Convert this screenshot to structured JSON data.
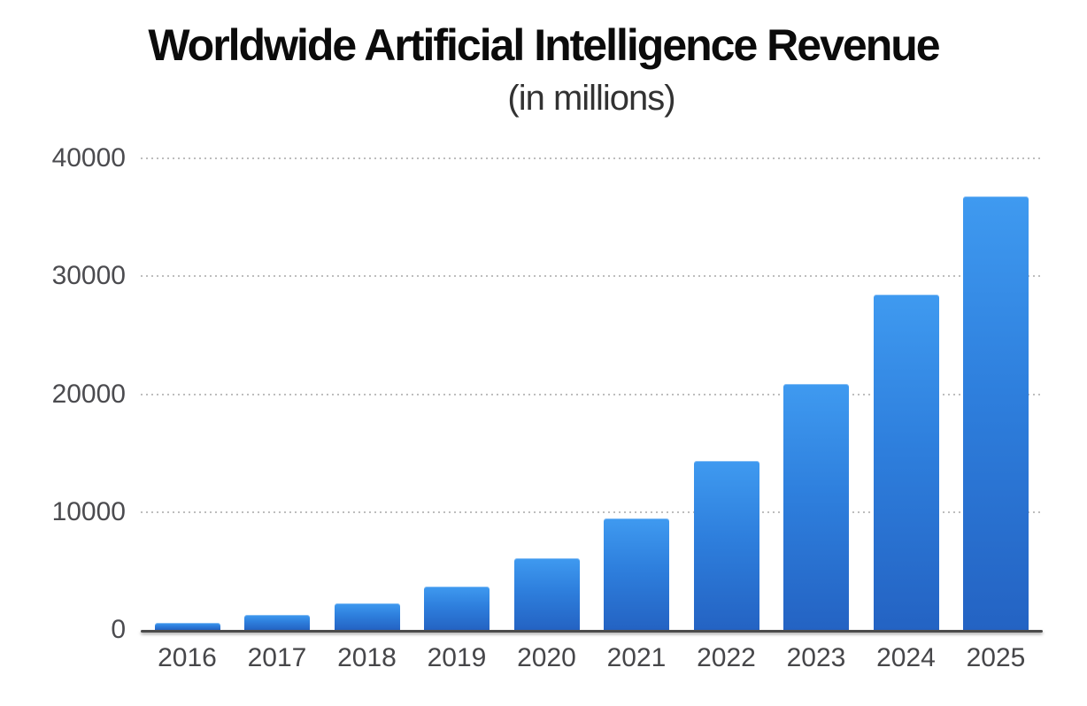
{
  "chart": {
    "title": "Worldwide Artificial Intelligence Revenue",
    "subtitle": "(in millions)"
  },
  "chart_data": {
    "type": "bar",
    "title": "Worldwide Artificial Intelligence Revenue",
    "subtitle": "(in millions)",
    "categories": [
      "2016",
      "2017",
      "2018",
      "2019",
      "2020",
      "2021",
      "2022",
      "2023",
      "2024",
      "2025"
    ],
    "values": [
      600,
      1300,
      2250,
      3700,
      6050,
      9450,
      14350,
      20850,
      28450,
      36800
    ],
    "xlabel": "",
    "ylabel": "",
    "ylim": [
      0,
      40000
    ],
    "yticks": [
      0,
      10000,
      20000,
      30000,
      40000
    ],
    "grid": "horizontal-dotted",
    "legend": "none",
    "colors": {
      "bar_gradient_top": "#3f9af0",
      "bar_gradient_bottom": "#2463c3",
      "axis_line": "#4b4b4b",
      "gridline": "#bdbdbd",
      "tick_label": "#4b4b4f",
      "title": "#0b0b0b",
      "subtitle": "#323232"
    }
  }
}
